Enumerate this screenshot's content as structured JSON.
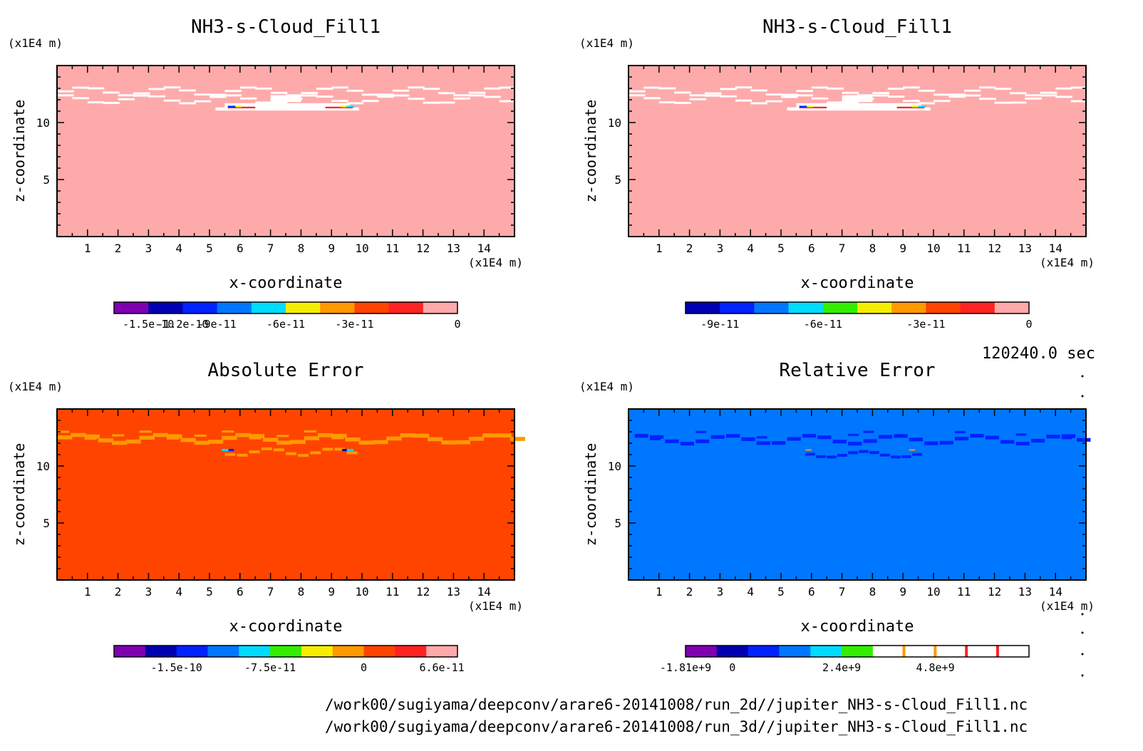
{
  "time_label": "120240.0 sec",
  "file_paths": [
    "/work00/sugiyama/deepconv/arare6-20141008/run_2d//jupiter_NH3-s-Cloud_Fill1.nc",
    "/work00/sugiyama/deepconv/arare6-20141008/run_3d//jupiter_NH3-s-Cloud_Fill1.nc"
  ],
  "colors": {
    "purple": "#7f00b2",
    "navy": "#0000b3",
    "blue": "#0022ff",
    "sky": "#0077ff",
    "cyan": "#00dcff",
    "green": "#33ee00",
    "yellow": "#f5ee00",
    "orange": "#ff9900",
    "redorange": "#ff4400",
    "red": "#ff2222",
    "pink": "#ffaaaa",
    "white": "#ffffff"
  },
  "chart_data": [
    {
      "type": "heatmap",
      "title": "NH3-s-Cloud_Fill1",
      "xlabel": "x-coordinate",
      "ylabel": "z-coordinate",
      "x_unit": "(x1E4 m)",
      "y_unit": "(x1E4 m)",
      "xlim": [
        0,
        15
      ],
      "ylim": [
        0,
        15
      ],
      "x_ticks": [
        1,
        2,
        3,
        4,
        5,
        6,
        7,
        8,
        9,
        10,
        11,
        12,
        13,
        14
      ],
      "y_ticks": [
        5,
        10
      ],
      "background": "pink",
      "colorbar": {
        "colors": [
          "purple",
          "navy",
          "blue",
          "sky",
          "cyan",
          "yellow",
          "orange",
          "redorange",
          "red",
          "pink"
        ],
        "ticks": [
          {
            "index": 1,
            "label": "-1.5e-10"
          },
          {
            "index": 2,
            "label": "-1.2e-10"
          },
          {
            "index": 3,
            "label": "-9e-11"
          },
          {
            "index": 5,
            "label": "-6e-11"
          },
          {
            "index": 7,
            "label": "-3e-11"
          },
          {
            "index": 10,
            "label": "0"
          }
        ]
      }
    },
    {
      "type": "heatmap",
      "title": "NH3-s-Cloud_Fill1",
      "xlabel": "x-coordinate",
      "ylabel": "z-coordinate",
      "x_unit": "(x1E4 m)",
      "y_unit": "(x1E4 m)",
      "xlim": [
        0,
        15
      ],
      "ylim": [
        0,
        15
      ],
      "x_ticks": [
        1,
        2,
        3,
        4,
        5,
        6,
        7,
        8,
        9,
        10,
        11,
        12,
        13,
        14
      ],
      "y_ticks": [
        5,
        10
      ],
      "background": "pink",
      "colorbar": {
        "colors": [
          "navy",
          "blue",
          "sky",
          "cyan",
          "green",
          "yellow",
          "orange",
          "redorange",
          "red",
          "pink"
        ],
        "ticks": [
          {
            "index": 1,
            "label": "-9e-11"
          },
          {
            "index": 4,
            "label": "-6e-11"
          },
          {
            "index": 7,
            "label": "-3e-11"
          },
          {
            "index": 10,
            "label": "0"
          }
        ]
      }
    },
    {
      "type": "heatmap",
      "title": "Absolute Error",
      "xlabel": "x-coordinate",
      "ylabel": "z-coordinate",
      "x_unit": "(x1E4 m)",
      "y_unit": "(x1E4 m)",
      "xlim": [
        0,
        15
      ],
      "ylim": [
        0,
        15
      ],
      "x_ticks": [
        1,
        2,
        3,
        4,
        5,
        6,
        7,
        8,
        9,
        10,
        11,
        12,
        13,
        14
      ],
      "y_ticks": [
        5,
        10
      ],
      "background": "redorange",
      "colorbar": {
        "colors": [
          "purple",
          "navy",
          "blue",
          "sky",
          "cyan",
          "green",
          "yellow",
          "orange",
          "redorange",
          "red",
          "pink"
        ],
        "ticks": [
          {
            "index": 2,
            "label": "-1.5e-10"
          },
          {
            "index": 5,
            "label": "-7.5e-11"
          },
          {
            "index": 8,
            "label": "0"
          },
          {
            "index": 10.5,
            "label": "6.6e-11"
          }
        ]
      }
    },
    {
      "type": "heatmap",
      "title": "Relative Error",
      "xlabel": "x-coordinate",
      "ylabel": "z-coordinate",
      "x_unit": "(x1E4 m)",
      "y_unit": "(x1E4 m)",
      "xlim": [
        0,
        15
      ],
      "ylim": [
        0,
        15
      ],
      "x_ticks": [
        1,
        2,
        3,
        4,
        5,
        6,
        7,
        8,
        9,
        10,
        11,
        12,
        13,
        14
      ],
      "y_ticks": [
        5,
        10
      ],
      "background": "sky",
      "colorbar": {
        "colors": [
          "purple",
          "navy",
          "blue",
          "sky",
          "cyan",
          "green",
          "white",
          "white",
          "white",
          "white",
          "white"
        ],
        "ticks": [
          {
            "index": 0,
            "label": "-1.81e+9"
          },
          {
            "index": 1.5,
            "label": "0"
          },
          {
            "index": 5,
            "label": "2.4e+9"
          },
          {
            "index": 8,
            "label": "4.8e+9"
          }
        ]
      }
    }
  ]
}
